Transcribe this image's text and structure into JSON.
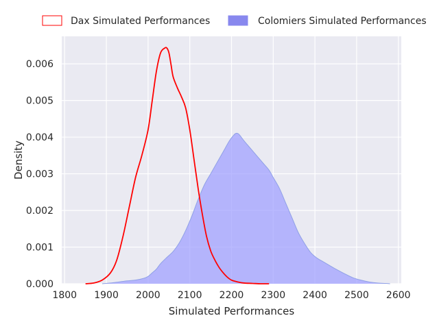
{
  "chart_data": {
    "type": "area",
    "xlabel": "Simulated Performances",
    "ylabel": "Density",
    "xlim": [
      1793,
      2607
    ],
    "ylim": [
      0,
      0.00675
    ],
    "x_ticks": [
      1800,
      1900,
      2000,
      2100,
      2200,
      2300,
      2400,
      2500,
      2600
    ],
    "x_tick_labels": [
      "1800",
      "1900",
      "2000",
      "2100",
      "2200",
      "2300",
      "2400",
      "2500",
      "2600"
    ],
    "y_ticks": [
      0,
      0.001,
      0.002,
      0.003,
      0.004,
      0.005,
      0.006
    ],
    "y_tick_labels": [
      "0.000",
      "0.001",
      "0.002",
      "0.003",
      "0.004",
      "0.005",
      "0.006"
    ],
    "grid": true,
    "legend_position": "top",
    "series": [
      {
        "name": "Dax Simulated Performances",
        "style": "line",
        "color": "#ff0000",
        "x": [
          1850,
          1870,
          1890,
          1910,
          1925,
          1940,
          1955,
          1970,
          1985,
          2000,
          2010,
          2020,
          2030,
          2040,
          2045,
          2050,
          2055,
          2060,
          2070,
          2080,
          2090,
          2100,
          2110,
          2120,
          2130,
          2140,
          2150,
          2160,
          2170,
          2180,
          2190,
          2200,
          2215,
          2230,
          2250,
          2270,
          2290
        ],
        "values": [
          0.0,
          2e-05,
          0.0001,
          0.0003,
          0.00065,
          0.0013,
          0.0021,
          0.0029,
          0.0035,
          0.0042,
          0.005,
          0.0058,
          0.0063,
          0.00643,
          0.00643,
          0.0063,
          0.00598,
          0.00565,
          0.00535,
          0.0051,
          0.0048,
          0.0042,
          0.0034,
          0.0026,
          0.0019,
          0.0013,
          0.0009,
          0.00065,
          0.00045,
          0.0003,
          0.00018,
          0.0001,
          5e-05,
          2e-05,
          1e-05,
          0.0,
          0.0
        ]
      },
      {
        "name": "Colomiers Simulated Performances",
        "style": "filled",
        "color": "#8888ee",
        "x": [
          1890,
          1910,
          1930,
          1950,
          1970,
          1990,
          2000,
          2010,
          2020,
          2030,
          2045,
          2060,
          2075,
          2090,
          2105,
          2120,
          2135,
          2150,
          2165,
          2180,
          2195,
          2205,
          2210,
          2215,
          2220,
          2230,
          2245,
          2260,
          2275,
          2290,
          2300,
          2315,
          2330,
          2345,
          2360,
          2375,
          2390,
          2405,
          2420,
          2435,
          2450,
          2470,
          2490,
          2510,
          2530,
          2550,
          2570,
          2580
        ],
        "values": [
          0.0,
          2e-05,
          5e-05,
          8e-05,
          0.0001,
          0.00015,
          0.0002,
          0.0003,
          0.0004,
          0.00055,
          0.00072,
          0.00088,
          0.00112,
          0.00145,
          0.00185,
          0.0023,
          0.0027,
          0.003,
          0.0033,
          0.0036,
          0.0039,
          0.00405,
          0.0041,
          0.0041,
          0.00405,
          0.0039,
          0.0037,
          0.0035,
          0.0033,
          0.0031,
          0.0029,
          0.0026,
          0.0022,
          0.0018,
          0.0014,
          0.0011,
          0.00085,
          0.0007,
          0.0006,
          0.0005,
          0.0004,
          0.00028,
          0.00017,
          0.0001,
          5e-05,
          2e-05,
          1e-05,
          0.0
        ]
      }
    ]
  }
}
